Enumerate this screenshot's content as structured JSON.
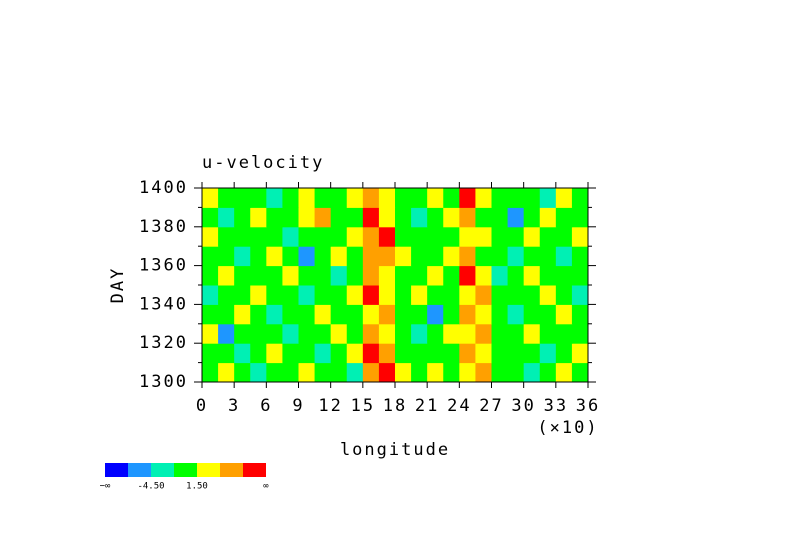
{
  "chart_data": {
    "type": "heatmap",
    "title": "u-velocity",
    "x_label": "longitude",
    "x_multiplier": "(×10)",
    "y_label": "DAY",
    "xlim": [
      0,
      36
    ],
    "xticks": [
      0,
      3,
      6,
      9,
      12,
      15,
      18,
      21,
      24,
      27,
      30,
      33,
      36
    ],
    "ylim": [
      1300,
      1400
    ],
    "yticks": [
      1300,
      1320,
      1340,
      1360,
      1380,
      1400
    ],
    "y_minor_ticks": [
      1310,
      1330,
      1350,
      1370,
      1390
    ],
    "x": [
      0.75,
      2.25,
      3.75,
      5.25,
      6.75,
      8.25,
      9.75,
      11.25,
      12.75,
      14.25,
      15.75,
      17.25,
      18.75,
      20.25,
      21.75,
      23.25,
      24.75,
      26.25,
      27.75,
      29.25,
      30.75,
      32.25,
      33.75,
      35.25
    ],
    "y": [
      1305,
      1315,
      1325,
      1335,
      1345,
      1355,
      1365,
      1375,
      1385,
      1395
    ],
    "z": [
      [
        0,
        3,
        0,
        -3,
        0,
        0,
        3,
        0,
        0,
        -3,
        6,
        9,
        3,
        0,
        3,
        0,
        3,
        6,
        0,
        0,
        -3,
        0,
        3,
        0
      ],
      [
        0,
        0,
        -3,
        0,
        3,
        0,
        0,
        -3,
        0,
        3,
        9,
        6,
        0,
        0,
        0,
        0,
        6,
        3,
        0,
        0,
        0,
        -3,
        0,
        3
      ],
      [
        3,
        -6,
        0,
        0,
        0,
        -3,
        0,
        0,
        3,
        0,
        6,
        3,
        0,
        -3,
        0,
        3,
        3,
        6,
        0,
        0,
        3,
        0,
        0,
        0
      ],
      [
        0,
        0,
        3,
        0,
        -3,
        0,
        0,
        3,
        0,
        0,
        3,
        6,
        0,
        0,
        -6,
        0,
        6,
        3,
        0,
        -3,
        0,
        0,
        3,
        0
      ],
      [
        -3,
        0,
        0,
        3,
        0,
        0,
        -3,
        0,
        0,
        3,
        9,
        3,
        0,
        3,
        0,
        0,
        3,
        6,
        0,
        0,
        0,
        3,
        0,
        -3
      ],
      [
        0,
        3,
        0,
        0,
        0,
        3,
        0,
        0,
        -3,
        0,
        6,
        3,
        0,
        0,
        3,
        0,
        9,
        3,
        -3,
        0,
        3,
        0,
        0,
        0
      ],
      [
        0,
        0,
        -3,
        0,
        3,
        0,
        -6,
        0,
        3,
        0,
        6,
        6,
        3,
        0,
        0,
        3,
        6,
        0,
        0,
        -3,
        0,
        0,
        -3,
        0
      ],
      [
        3,
        0,
        0,
        0,
        0,
        -3,
        0,
        0,
        0,
        3,
        6,
        9,
        0,
        0,
        0,
        0,
        3,
        3,
        0,
        0,
        3,
        0,
        0,
        3
      ],
      [
        0,
        -3,
        0,
        3,
        0,
        0,
        3,
        6,
        0,
        0,
        9,
        3,
        0,
        -3,
        0,
        3,
        6,
        0,
        0,
        -6,
        0,
        3,
        0,
        0
      ],
      [
        3,
        0,
        0,
        0,
        -3,
        0,
        3,
        0,
        0,
        3,
        6,
        3,
        0,
        0,
        3,
        0,
        9,
        3,
        0,
        0,
        0,
        -3,
        3,
        0
      ]
    ],
    "levels": [
      -7.5,
      -4.5,
      -1.5,
      1.5,
      4.5,
      7.5
    ],
    "colors": [
      "#0000ff",
      "#1e96ff",
      "#00f0b4",
      "#00ff00",
      "#ffff00",
      "#ffa000",
      "#ff0000"
    ],
    "colorbar_labels": [
      {
        "value": -4.5,
        "label": "-4.50"
      },
      {
        "value": 1.5,
        "label": "1.50"
      }
    ],
    "colorbar_end_labels": [
      "−∞",
      "∞"
    ]
  }
}
